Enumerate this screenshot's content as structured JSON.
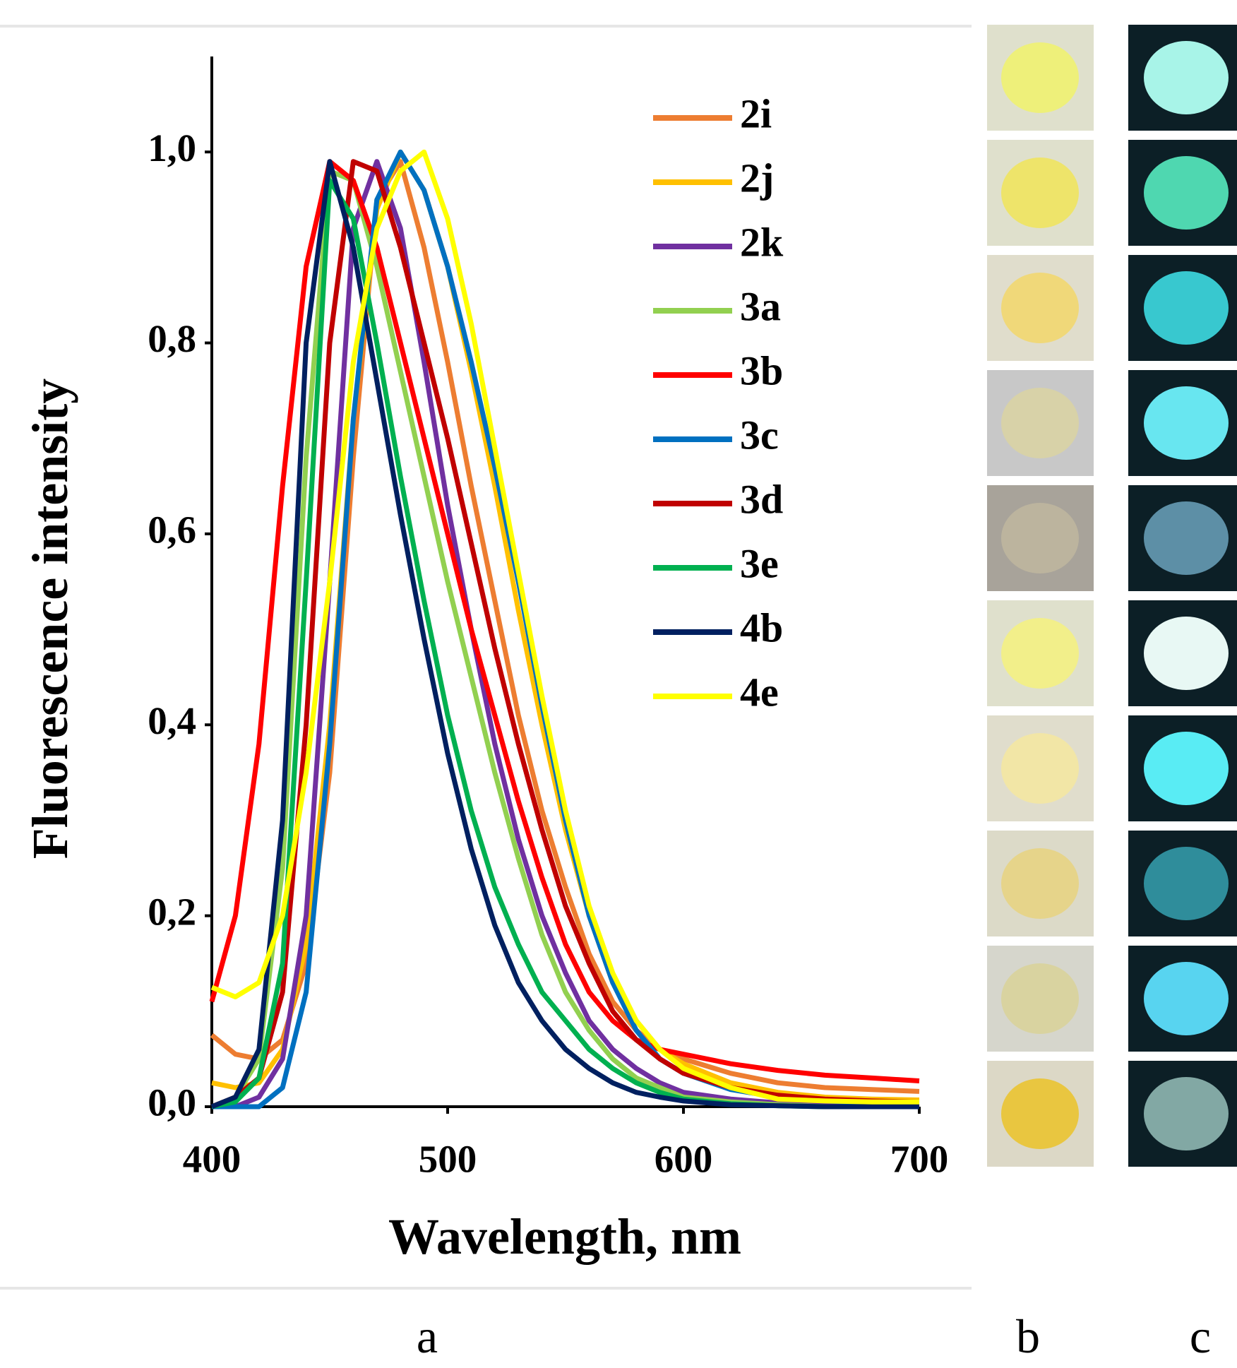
{
  "chart_data": {
    "type": "line",
    "x_label": "Wavelength, nm",
    "y_label": "Fluorescence intensity",
    "x": [
      400,
      410,
      420,
      430,
      440,
      450,
      460,
      470,
      480,
      490,
      500,
      510,
      520,
      530,
      540,
      550,
      560,
      570,
      580,
      590,
      600,
      620,
      640,
      660,
      680,
      700
    ],
    "series": [
      {
        "name": "2i",
        "color": "#ed7d31",
        "values": [
          0.075,
          0.055,
          0.05,
          0.07,
          0.15,
          0.35,
          0.68,
          0.95,
          0.99,
          0.9,
          0.78,
          0.65,
          0.53,
          0.41,
          0.31,
          0.23,
          0.16,
          0.11,
          0.08,
          0.06,
          0.05,
          0.035,
          0.025,
          0.02,
          0.018,
          0.016
        ]
      },
      {
        "name": "2j",
        "color": "#ffc000",
        "values": [
          0.025,
          0.02,
          0.025,
          0.06,
          0.17,
          0.4,
          0.72,
          0.94,
          1.0,
          0.96,
          0.88,
          0.77,
          0.65,
          0.52,
          0.4,
          0.29,
          0.2,
          0.13,
          0.09,
          0.06,
          0.045,
          0.025,
          0.015,
          0.01,
          0.008,
          0.007
        ]
      },
      {
        "name": "2k",
        "color": "#7030a0",
        "values": [
          0.0,
          0.0,
          0.01,
          0.05,
          0.2,
          0.55,
          0.92,
          0.99,
          0.92,
          0.78,
          0.63,
          0.5,
          0.38,
          0.28,
          0.2,
          0.14,
          0.09,
          0.06,
          0.04,
          0.025,
          0.015,
          0.008,
          0.004,
          0.002,
          0.001,
          0.0
        ]
      },
      {
        "name": "3a",
        "color": "#92d050",
        "values": [
          0.0,
          0.01,
          0.05,
          0.25,
          0.68,
          0.98,
          0.97,
          0.88,
          0.77,
          0.66,
          0.55,
          0.45,
          0.35,
          0.26,
          0.18,
          0.12,
          0.08,
          0.05,
          0.03,
          0.02,
          0.01,
          0.005,
          0.002,
          0.0,
          0.0,
          0.0
        ]
      },
      {
        "name": "3b",
        "color": "#ff0000",
        "values": [
          0.11,
          0.2,
          0.38,
          0.65,
          0.88,
          0.99,
          0.97,
          0.9,
          0.8,
          0.7,
          0.6,
          0.5,
          0.41,
          0.32,
          0.24,
          0.17,
          0.12,
          0.09,
          0.07,
          0.06,
          0.055,
          0.045,
          0.038,
          0.033,
          0.03,
          0.027
        ]
      },
      {
        "name": "3c",
        "color": "#0070c0",
        "values": [
          0.0,
          0.0,
          0.0,
          0.02,
          0.12,
          0.38,
          0.72,
          0.95,
          1.0,
          0.96,
          0.88,
          0.78,
          0.67,
          0.55,
          0.42,
          0.3,
          0.2,
          0.13,
          0.08,
          0.05,
          0.035,
          0.018,
          0.01,
          0.006,
          0.004,
          0.003
        ]
      },
      {
        "name": "3d",
        "color": "#c00000",
        "values": [
          0.0,
          0.01,
          0.03,
          0.12,
          0.4,
          0.8,
          0.99,
          0.98,
          0.9,
          0.8,
          0.7,
          0.59,
          0.48,
          0.38,
          0.29,
          0.21,
          0.15,
          0.1,
          0.07,
          0.05,
          0.035,
          0.02,
          0.012,
          0.008,
          0.006,
          0.005
        ]
      },
      {
        "name": "3e",
        "color": "#00b050",
        "values": [
          0.0,
          0.005,
          0.03,
          0.15,
          0.55,
          0.97,
          0.93,
          0.8,
          0.66,
          0.53,
          0.41,
          0.31,
          0.23,
          0.17,
          0.12,
          0.09,
          0.06,
          0.04,
          0.025,
          0.015,
          0.008,
          0.003,
          0.001,
          0.0,
          0.0,
          0.0
        ]
      },
      {
        "name": "4b",
        "color": "#002060",
        "values": [
          0.0,
          0.01,
          0.06,
          0.3,
          0.8,
          0.99,
          0.9,
          0.76,
          0.62,
          0.49,
          0.37,
          0.27,
          0.19,
          0.13,
          0.09,
          0.06,
          0.04,
          0.025,
          0.015,
          0.01,
          0.006,
          0.002,
          0.001,
          0.0,
          0.0,
          0.0
        ]
      },
      {
        "name": "4e",
        "color": "#ffff00",
        "values": [
          0.125,
          0.115,
          0.13,
          0.2,
          0.35,
          0.55,
          0.78,
          0.92,
          0.98,
          1.0,
          0.93,
          0.82,
          0.69,
          0.56,
          0.43,
          0.31,
          0.21,
          0.14,
          0.09,
          0.06,
          0.04,
          0.02,
          0.008,
          0.006,
          0.005,
          0.005
        ]
      }
    ],
    "xlim": [
      400,
      700
    ],
    "xticks": [
      400,
      500,
      600,
      700
    ],
    "ylim": [
      0,
      1.1
    ],
    "yticks": [
      {
        "value": 0,
        "label": "0,0"
      },
      {
        "value": 0.2,
        "label": "0,2"
      },
      {
        "value": 0.4,
        "label": "0,4"
      },
      {
        "value": 0.6,
        "label": "0,6"
      },
      {
        "value": 0.8,
        "label": "0,8"
      },
      {
        "value": 1.0,
        "label": "1,0"
      }
    ],
    "legend": "upper right",
    "panel_labels": [
      "a",
      "b",
      "c"
    ]
  }
}
